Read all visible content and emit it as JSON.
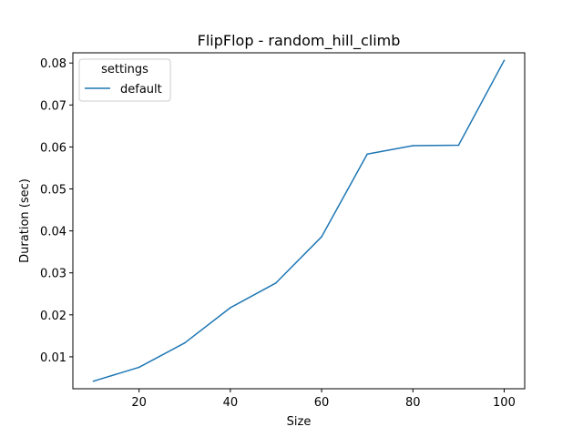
{
  "chart_data": {
    "type": "line",
    "title": "FlipFlop - random_hill_climb",
    "xlabel": "Size",
    "ylabel": "Duration (sec)",
    "x": [
      10,
      20,
      30,
      40,
      50,
      60,
      70,
      80,
      90,
      100
    ],
    "series": [
      {
        "name": "default",
        "color": "#1f77b4",
        "values": [
          0.0042,
          0.0075,
          0.0133,
          0.0217,
          0.0276,
          0.0386,
          0.0583,
          0.0603,
          0.0604,
          0.0806
        ]
      }
    ],
    "xlim": [
      5.5,
      104.5
    ],
    "ylim": [
      0.00239,
      0.08243
    ],
    "xticks": [
      20,
      40,
      60,
      80,
      100
    ],
    "xtick_labels": [
      "20",
      "40",
      "60",
      "80",
      "100"
    ],
    "yticks": [
      0.01,
      0.02,
      0.03,
      0.04,
      0.05,
      0.06,
      0.07,
      0.08
    ],
    "ytick_labels": [
      "0.01",
      "0.02",
      "0.03",
      "0.04",
      "0.05",
      "0.06",
      "0.07",
      "0.08"
    ],
    "legend": {
      "title": "settings",
      "position": "top-left"
    },
    "grid": false
  }
}
